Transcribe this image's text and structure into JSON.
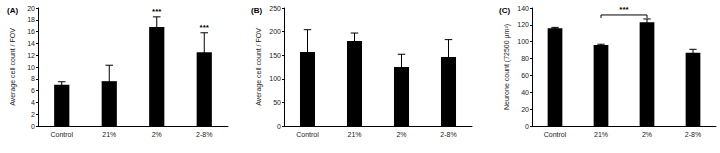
{
  "chart_data": [
    {
      "type": "bar",
      "title": "(A)",
      "y_label": "Average cell count / FOV",
      "categories": [
        "Control",
        "21%",
        "2%",
        "2-8%"
      ],
      "values": [
        7.0,
        7.6,
        16.8,
        12.5
      ],
      "errors": [
        0.5,
        2.7,
        1.7,
        3.3
      ],
      "significance": [
        null,
        null,
        "***",
        "***"
      ],
      "color": "#000000",
      "ylim": [
        0,
        20
      ],
      "yticks": [
        0,
        2,
        4,
        6,
        8,
        10,
        12,
        14,
        16,
        18,
        20
      ],
      "grid": false
    },
    {
      "type": "bar",
      "title": "(B)",
      "y_label": "Average cell count / FOV",
      "categories": [
        "Control",
        "21%",
        "2%",
        "2-8%"
      ],
      "values": [
        157,
        180,
        125,
        146
      ],
      "errors": [
        47,
        17,
        27,
        37
      ],
      "color": "#000000",
      "ylim": [
        0,
        250
      ],
      "yticks": [
        0,
        50,
        100,
        150,
        200,
        250
      ],
      "grid": false
    },
    {
      "type": "bar",
      "title": "(C)",
      "y_label": "Neurone count (72500 µm²)",
      "categories": [
        "Control",
        "21%",
        "2%",
        "2-8%"
      ],
      "values": [
        116,
        96,
        123,
        87
      ],
      "errors": [
        1,
        1,
        4,
        4
      ],
      "brackets": [
        {
          "from": "21%",
          "to": "2%",
          "label": "***"
        }
      ],
      "color": "#000000",
      "ylim": [
        0,
        140
      ],
      "yticks": [
        0,
        20,
        40,
        60,
        80,
        100,
        120,
        140
      ],
      "grid": false
    }
  ]
}
